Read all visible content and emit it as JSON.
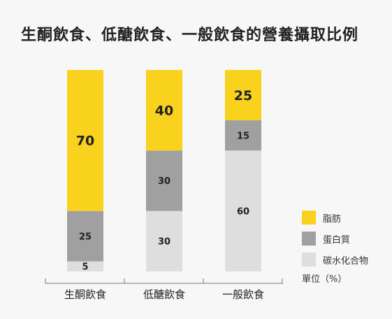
{
  "title": "生酮飲食、低醣飲食、一般飲食的營養攝取比例",
  "unit_label": "單位（%）",
  "colors": {
    "fat": "#f9d21d",
    "protein": "#a0a0a0",
    "carbs": "#dedede",
    "axis": "#777777",
    "text": "#222222"
  },
  "chart_data": {
    "type": "bar",
    "stacked": true,
    "categories": [
      "生酮飲食",
      "低醣飲食",
      "一般飲食"
    ],
    "series": [
      {
        "name": "碳水化合物",
        "key": "carbs",
        "values": [
          5,
          30,
          60
        ]
      },
      {
        "name": "蛋白質",
        "key": "protein",
        "values": [
          25,
          30,
          15
        ]
      },
      {
        "name": "脂肪",
        "key": "fat",
        "values": [
          70,
          40,
          25
        ]
      }
    ],
    "ylim": [
      0,
      100
    ],
    "legend_order": [
      "fat",
      "protein",
      "carbs"
    ]
  }
}
